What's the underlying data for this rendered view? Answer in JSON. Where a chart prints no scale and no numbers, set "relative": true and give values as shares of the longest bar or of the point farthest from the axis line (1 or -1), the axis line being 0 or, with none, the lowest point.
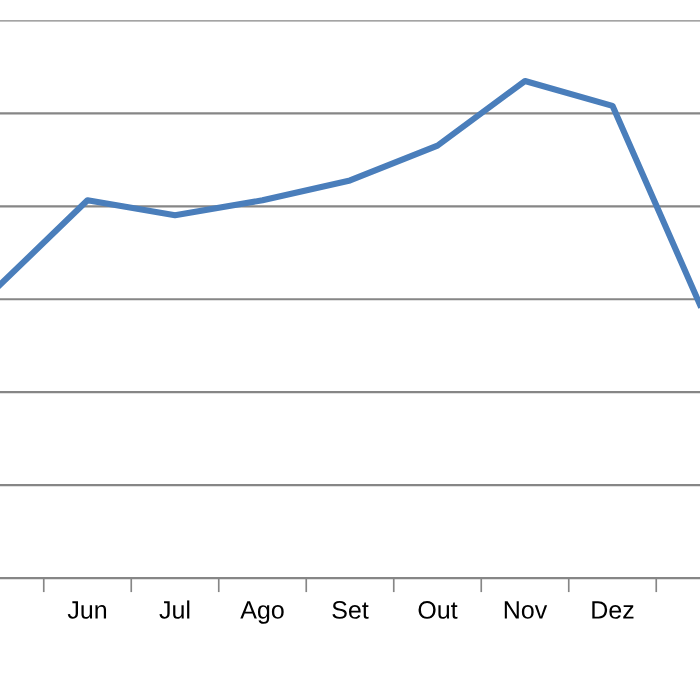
{
  "chart_data": {
    "type": "line",
    "relative": true,
    "grid": "y",
    "legend": false,
    "marker": "none",
    "line_style": "solid",
    "categories": [
      null,
      "Jun",
      "Jul",
      "Ago",
      "Set",
      "Out",
      "Nov",
      "Dez",
      null
    ],
    "series": [
      {
        "color": "#4a7ebb",
        "values": [
          0.59,
          0.76,
          0.73,
          0.76,
          0.8,
          0.87,
          1,
          0.95,
          0.55
        ]
      }
    ]
  }
}
